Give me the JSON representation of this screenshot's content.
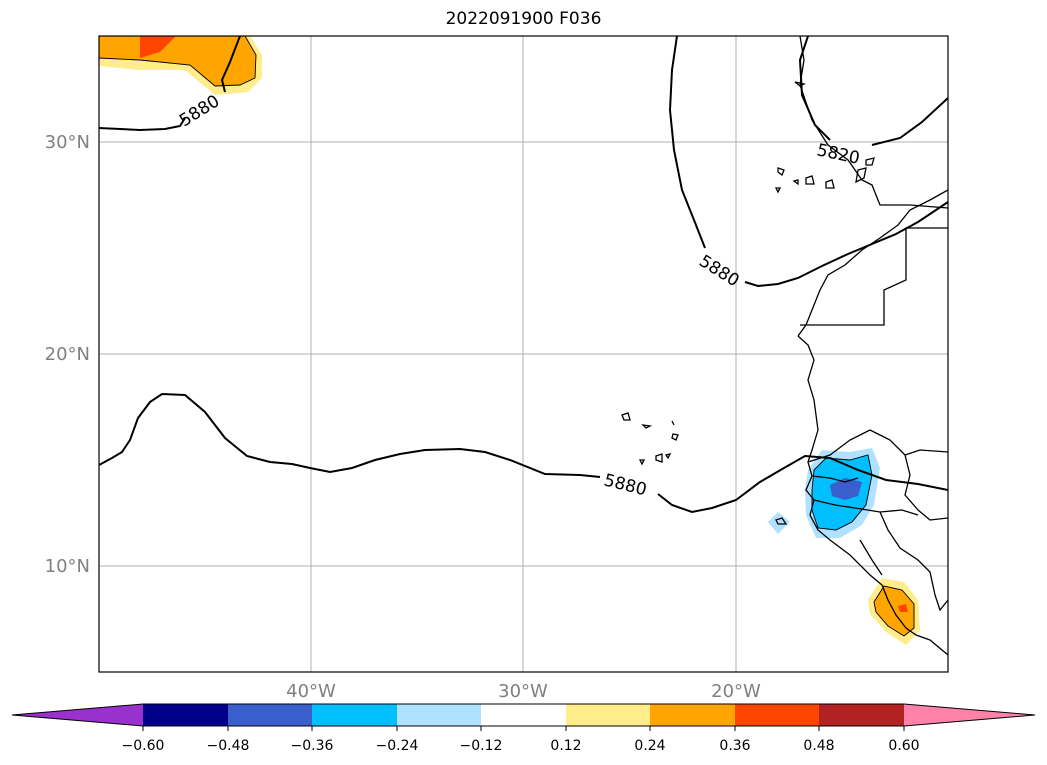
{
  "title": "2022091900 F036",
  "map": {
    "lat_ticks": [
      "30°N",
      "20°N",
      "10°N"
    ],
    "lon_ticks": [
      "40°W",
      "30°W",
      "20°W"
    ],
    "contour_labels": [
      "5880",
      "5820",
      "5880",
      "5880"
    ],
    "gridlines": true
  },
  "colorbar": {
    "tick_labels": [
      "−0.60",
      "−0.48",
      "−0.36",
      "−0.24",
      "−0.12",
      "0.12",
      "0.24",
      "0.36",
      "0.48",
      "0.60"
    ],
    "colors": {
      "under": "#9932cc",
      "bins": [
        "#00008b",
        "#3a5fcd",
        "#00bfff",
        "#b0e2ff",
        "#ffffff",
        "#ffec8b",
        "#ffa500",
        "#ff4500",
        "#b22222"
      ],
      "over": "#ff82ab"
    }
  }
}
